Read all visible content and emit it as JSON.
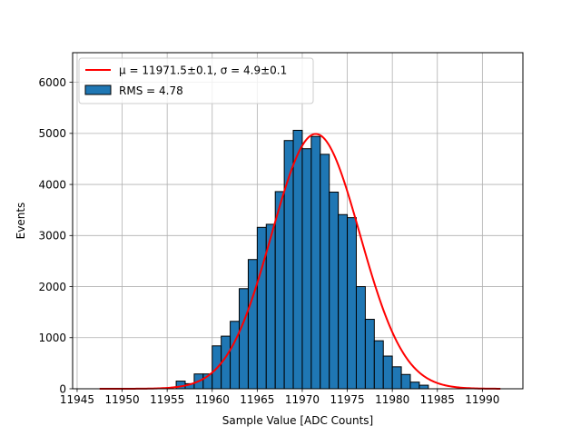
{
  "chart_data": {
    "type": "bar",
    "title": "",
    "xlabel": "Sample Value [ADC Counts]",
    "ylabel": "Events",
    "xlim": [
      11944.5,
      11994.5
    ],
    "ylim": [
      0,
      6580
    ],
    "xticks": [
      11945,
      11950,
      11955,
      11960,
      11965,
      11970,
      11975,
      11980,
      11985,
      11990
    ],
    "yticks": [
      0,
      1000,
      2000,
      3000,
      4000,
      5000,
      6000
    ],
    "grid": true,
    "legend_position": "top-left",
    "bin_width": 1,
    "histogram": {
      "name": "RMS = 4.78",
      "color": "#1f77b4",
      "edge_color": "#000000",
      "bins": [
        {
          "left": 11956,
          "count": 150
        },
        {
          "left": 11957,
          "count": 100
        },
        {
          "left": 11958,
          "count": 290
        },
        {
          "left": 11959,
          "count": 290
        },
        {
          "left": 11960,
          "count": 840
        },
        {
          "left": 11961,
          "count": 1030
        },
        {
          "left": 11962,
          "count": 1320
        },
        {
          "left": 11963,
          "count": 1960
        },
        {
          "left": 11964,
          "count": 2530
        },
        {
          "left": 11965,
          "count": 3160
        },
        {
          "left": 11966,
          "count": 3220
        },
        {
          "left": 11967,
          "count": 3860
        },
        {
          "left": 11968,
          "count": 4860
        },
        {
          "left": 11969,
          "count": 5060
        },
        {
          "left": 11970,
          "count": 4700
        },
        {
          "left": 11971,
          "count": 4940
        },
        {
          "left": 11972,
          "count": 4590
        },
        {
          "left": 11973,
          "count": 3850
        },
        {
          "left": 11974,
          "count": 3410
        },
        {
          "left": 11975,
          "count": 3350
        },
        {
          "left": 11976,
          "count": 2000
        },
        {
          "left": 11977,
          "count": 1360
        },
        {
          "left": 11978,
          "count": 940
        },
        {
          "left": 11979,
          "count": 640
        },
        {
          "left": 11980,
          "count": 430
        },
        {
          "left": 11981,
          "count": 280
        },
        {
          "left": 11982,
          "count": 130
        },
        {
          "left": 11983,
          "count": 70
        }
      ]
    },
    "fit": {
      "name": "μ = 11971.5±0.1, σ = 4.9±0.1",
      "type": "gaussian",
      "mu": 11971.5,
      "sigma": 4.9,
      "amplitude": 4990,
      "x_range": [
        11947.5,
        11992
      ],
      "color": "#ff0000"
    }
  }
}
